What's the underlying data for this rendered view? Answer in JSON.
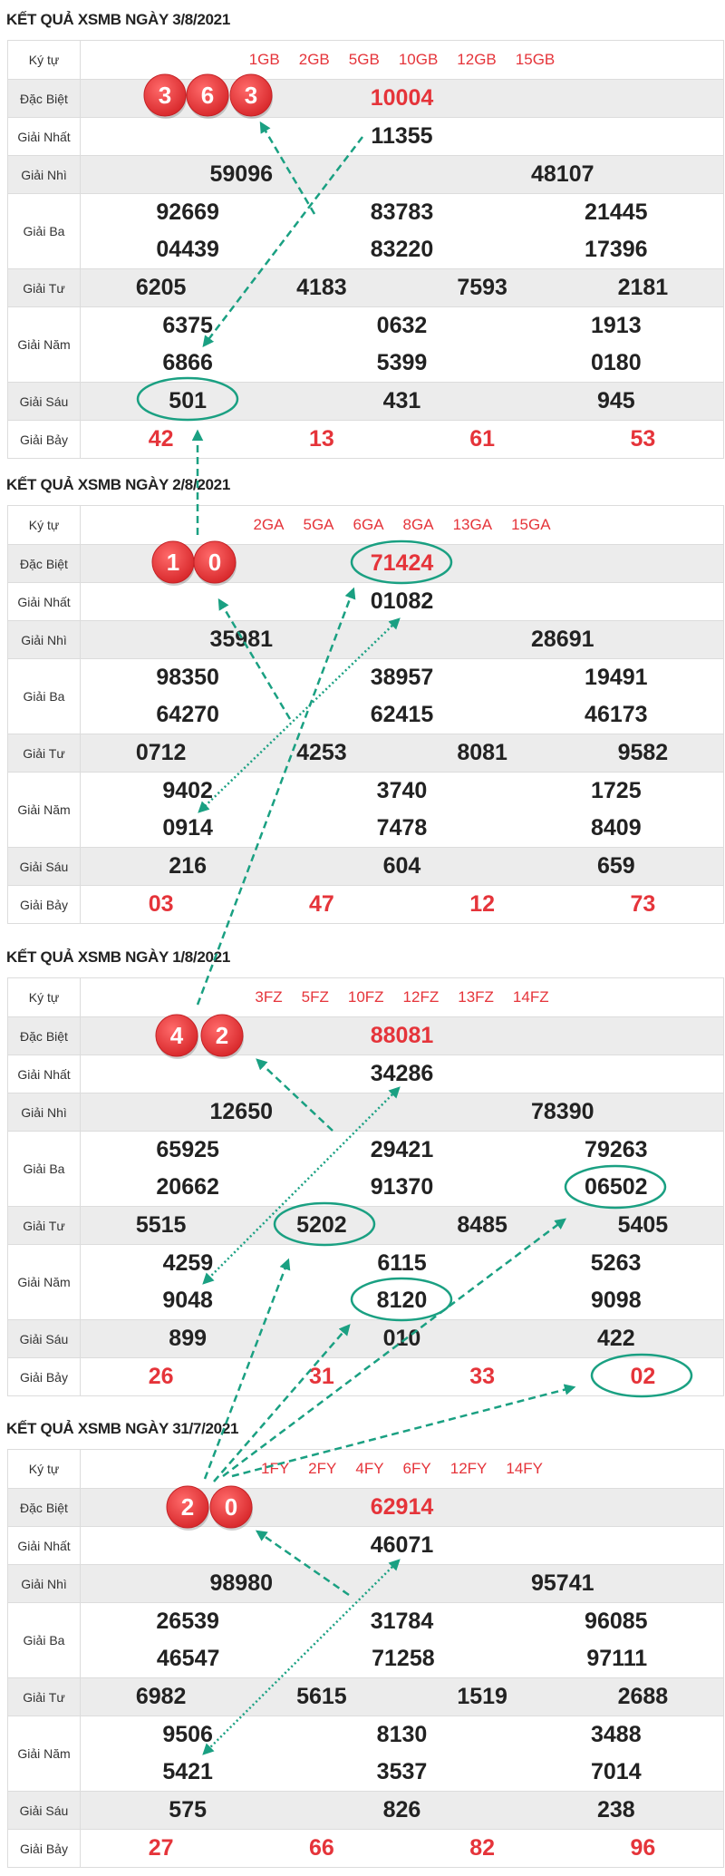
{
  "labels": {
    "kytu": "Ký tự",
    "db": "Đặc Biệt",
    "g1": "Giải Nhất",
    "g2": "Giải Nhì",
    "g3": "Giải Ba",
    "g4": "Giải Tư",
    "g5": "Giải Năm",
    "g6": "Giải Sáu",
    "g7": "Giải Bảy"
  },
  "colors": {
    "red": "#e5343a",
    "ball": "#e83a3c",
    "annotation": "#1aa082",
    "row_alt": "#ececec"
  },
  "sections": [
    {
      "title": "KẾT QUẢ XSMB NGÀY 3/8/2021",
      "kytu": [
        "1GB",
        "2GB",
        "5GB",
        "10GB",
        "12GB",
        "15GB"
      ],
      "db": "10004",
      "g1": "11355",
      "g2": [
        "59096",
        "48107"
      ],
      "g3": [
        [
          "92669",
          "83783",
          "21445"
        ],
        [
          "04439",
          "83220",
          "17396"
        ]
      ],
      "g4": [
        "6205",
        "4183",
        "7593",
        "2181"
      ],
      "g5": [
        [
          "6375",
          "0632",
          "1913"
        ],
        [
          "6866",
          "5399",
          "0180"
        ]
      ],
      "g6": [
        "501",
        "431",
        "945"
      ],
      "g7": [
        "42",
        "13",
        "61",
        "53"
      ],
      "balls": [
        "3",
        "6",
        "3"
      ]
    },
    {
      "title": "KẾT QUẢ XSMB NGÀY 2/8/2021",
      "kytu": [
        "2GA",
        "5GA",
        "6GA",
        "8GA",
        "13GA",
        "15GA"
      ],
      "db": "71424",
      "g1": "01082",
      "g2": [
        "35981",
        "28691"
      ],
      "g3": [
        [
          "98350",
          "38957",
          "19491"
        ],
        [
          "64270",
          "62415",
          "46173"
        ]
      ],
      "g4": [
        "0712",
        "4253",
        "8081",
        "9582"
      ],
      "g5": [
        [
          "9402",
          "3740",
          "1725"
        ],
        [
          "0914",
          "7478",
          "8409"
        ]
      ],
      "g6": [
        "216",
        "604",
        "659"
      ],
      "g7": [
        "03",
        "47",
        "12",
        "73"
      ],
      "balls": [
        "1",
        "0"
      ]
    },
    {
      "title": "KẾT QUẢ XSMB NGÀY 1/8/2021",
      "kytu": [
        "3FZ",
        "5FZ",
        "10FZ",
        "12FZ",
        "13FZ",
        "14FZ"
      ],
      "db": "88081",
      "g1": "34286",
      "g2": [
        "12650",
        "78390"
      ],
      "g3": [
        [
          "65925",
          "29421",
          "79263"
        ],
        [
          "20662",
          "91370",
          "06502"
        ]
      ],
      "g4": [
        "5515",
        "5202",
        "8485",
        "5405"
      ],
      "g5": [
        [
          "4259",
          "6115",
          "5263"
        ],
        [
          "9048",
          "8120",
          "9098"
        ]
      ],
      "g6": [
        "899",
        "010",
        "422"
      ],
      "g7": [
        "26",
        "31",
        "33",
        "02"
      ],
      "balls": [
        "4",
        "2"
      ]
    },
    {
      "title": "KẾT QUẢ XSMB NGÀY 31/7/2021",
      "kytu": [
        "1FY",
        "2FY",
        "4FY",
        "6FY",
        "12FY",
        "14FY"
      ],
      "db": "62914",
      "g1": "46071",
      "g2": [
        "98980",
        "95741"
      ],
      "g3": [
        [
          "26539",
          "31784",
          "96085"
        ],
        [
          "46547",
          "71258",
          "97111"
        ]
      ],
      "g4": [
        "6982",
        "5615",
        "1519",
        "2688"
      ],
      "g5": [
        [
          "9506",
          "8130",
          "3488"
        ],
        [
          "5421",
          "3537",
          "7014"
        ]
      ],
      "g6": [
        "575",
        "826",
        "238"
      ],
      "g7": [
        "27",
        "66",
        "82",
        "96"
      ],
      "balls": [
        "2",
        "0"
      ]
    }
  ]
}
